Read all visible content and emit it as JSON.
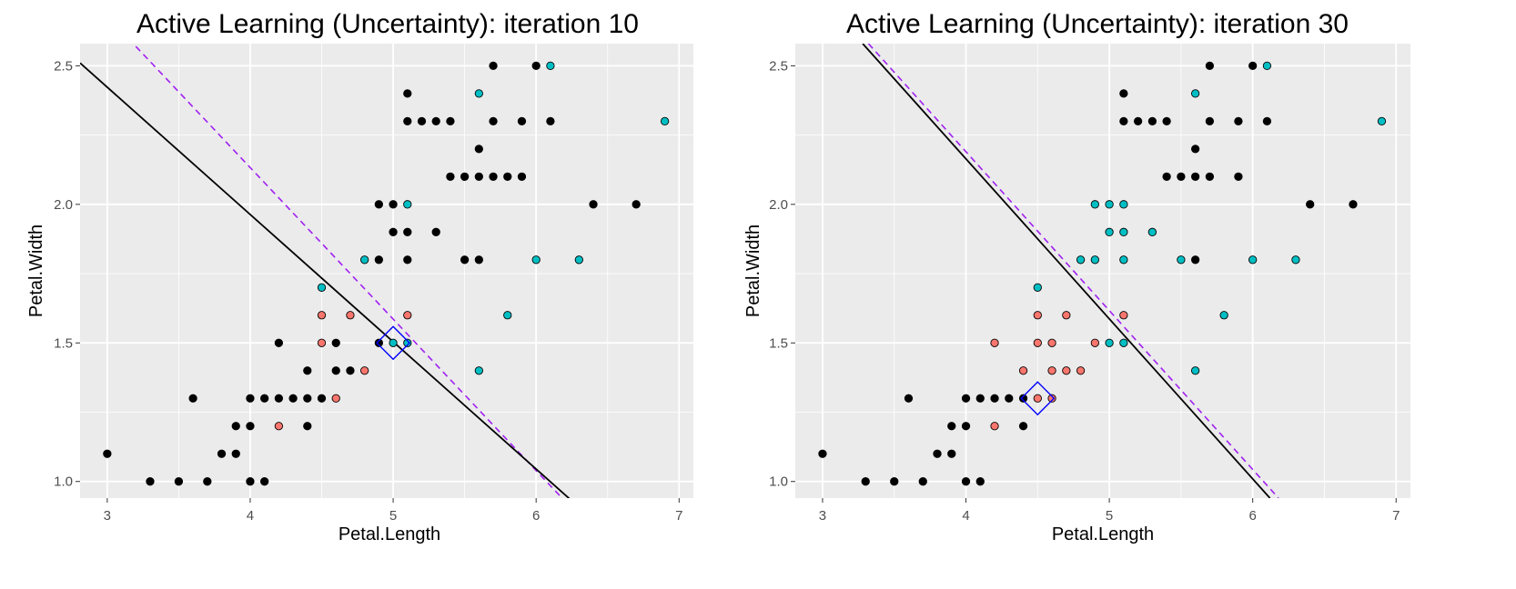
{
  "chart_data": [
    {
      "type": "scatter",
      "title": "Active Learning (Uncertainty): iteration 10",
      "xlabel": "Petal.Length",
      "ylabel": "Petal.Width",
      "xlim": [
        2.81,
        7.1
      ],
      "ylim": [
        0.94,
        2.58
      ],
      "xticks": [
        "3",
        "4",
        "5",
        "6",
        "7"
      ],
      "yticks": [
        "1.0",
        "1.5",
        "2.0",
        "2.5"
      ],
      "grid": true,
      "legend": "none",
      "colors": {
        "unlabeled": "#000000",
        "labeled_versicolor": "#F8766D",
        "labeled_virginica": "#00BFC4",
        "query": "#0000FF",
        "fitted_boundary": "#000000",
        "true_boundary": "#A020F0",
        "panel_bg": "#EBEBEB"
      },
      "series": [
        {
          "points": [
            [
              3.0,
              1.1
            ],
            [
              3.3,
              1.0
            ],
            [
              3.5,
              1.0
            ],
            [
              3.6,
              1.3
            ],
            [
              3.7,
              1.0
            ],
            [
              3.8,
              1.1
            ],
            [
              3.9,
              1.1
            ],
            [
              3.9,
              1.2
            ],
            [
              4.0,
              1.0
            ],
            [
              4.0,
              1.2
            ],
            [
              4.0,
              1.3
            ],
            [
              4.1,
              1.0
            ],
            [
              4.1,
              1.3
            ],
            [
              4.2,
              1.3
            ],
            [
              4.2,
              1.5
            ],
            [
              4.3,
              1.3
            ],
            [
              4.4,
              1.2
            ],
            [
              4.4,
              1.3
            ],
            [
              4.4,
              1.4
            ],
            [
              4.5,
              1.3
            ],
            [
              4.6,
              1.4
            ],
            [
              4.6,
              1.5
            ],
            [
              4.7,
              1.4
            ],
            [
              4.9,
              1.5
            ],
            [
              4.9,
              1.8
            ],
            [
              4.9,
              2.0
            ],
            [
              5.0,
              2.0
            ],
            [
              5.0,
              1.9
            ],
            [
              5.1,
              1.9
            ],
            [
              5.1,
              1.8
            ],
            [
              5.1,
              2.3
            ],
            [
              5.1,
              2.4
            ],
            [
              5.2,
              2.3
            ],
            [
              5.3,
              2.3
            ],
            [
              5.3,
              1.9
            ],
            [
              5.4,
              2.3
            ],
            [
              5.4,
              2.1
            ],
            [
              5.5,
              2.1
            ],
            [
              5.5,
              1.8
            ],
            [
              5.6,
              2.1
            ],
            [
              5.6,
              2.2
            ],
            [
              5.6,
              1.8
            ],
            [
              5.7,
              2.5
            ],
            [
              5.7,
              2.3
            ],
            [
              5.7,
              2.1
            ],
            [
              5.8,
              2.1
            ],
            [
              5.9,
              2.3
            ],
            [
              5.9,
              2.1
            ],
            [
              6.0,
              2.5
            ],
            [
              6.1,
              2.3
            ],
            [
              6.4,
              2.0
            ],
            [
              6.7,
              2.0
            ]
          ]
        },
        {
          "points": [
            [
              4.2,
              1.2
            ],
            [
              4.5,
              1.5
            ],
            [
              4.5,
              1.6
            ],
            [
              4.6,
              1.3
            ],
            [
              4.7,
              1.6
            ],
            [
              4.8,
              1.4
            ],
            [
              5.1,
              1.6
            ]
          ]
        },
        {
          "points": [
            [
              4.5,
              1.7
            ],
            [
              4.8,
              1.8
            ],
            [
              5.0,
              1.5
            ],
            [
              5.1,
              1.5
            ],
            [
              5.1,
              2.0
            ],
            [
              5.6,
              1.4
            ],
            [
              5.6,
              2.4
            ],
            [
              5.8,
              1.6
            ],
            [
              6.0,
              1.8
            ],
            [
              6.1,
              2.5
            ],
            [
              6.3,
              1.8
            ],
            [
              6.9,
              2.3
            ]
          ]
        }
      ],
      "query_point": [
        5.0,
        1.5
      ],
      "fitted_boundary": [
        [
          2.81,
          2.51
        ],
        [
          6.25,
          0.93
        ]
      ],
      "true_boundary": [
        [
          3.2,
          2.57
        ],
        [
          6.2,
          0.93
        ]
      ]
    },
    {
      "type": "scatter",
      "title": "Active Learning (Uncertainty): iteration 30",
      "xlabel": "Petal.Length",
      "ylabel": "Petal.Width",
      "xlim": [
        2.81,
        7.1
      ],
      "ylim": [
        0.94,
        2.58
      ],
      "xticks": [
        "3",
        "4",
        "5",
        "6",
        "7"
      ],
      "yticks": [
        "1.0",
        "1.5",
        "2.0",
        "2.5"
      ],
      "grid": true,
      "legend": "none",
      "colors": {
        "unlabeled": "#000000",
        "labeled_versicolor": "#F8766D",
        "labeled_virginica": "#00BFC4",
        "query": "#0000FF",
        "fitted_boundary": "#000000",
        "true_boundary": "#A020F0",
        "panel_bg": "#EBEBEB"
      },
      "series": [
        {
          "points": [
            [
              3.0,
              1.1
            ],
            [
              3.3,
              1.0
            ],
            [
              3.5,
              1.0
            ],
            [
              3.6,
              1.3
            ],
            [
              3.7,
              1.0
            ],
            [
              3.8,
              1.1
            ],
            [
              3.9,
              1.1
            ],
            [
              3.9,
              1.2
            ],
            [
              4.0,
              1.0
            ],
            [
              4.0,
              1.2
            ],
            [
              4.0,
              1.3
            ],
            [
              4.1,
              1.0
            ],
            [
              4.1,
              1.3
            ],
            [
              4.2,
              1.3
            ],
            [
              4.3,
              1.3
            ],
            [
              4.4,
              1.2
            ],
            [
              4.4,
              1.3
            ],
            [
              5.1,
              2.3
            ],
            [
              5.1,
              2.4
            ],
            [
              5.2,
              2.3
            ],
            [
              5.3,
              2.3
            ],
            [
              5.4,
              2.3
            ],
            [
              5.4,
              2.1
            ],
            [
              5.5,
              2.1
            ],
            [
              5.6,
              2.1
            ],
            [
              5.6,
              2.2
            ],
            [
              5.6,
              1.8
            ],
            [
              5.7,
              2.5
            ],
            [
              5.7,
              2.3
            ],
            [
              5.7,
              2.1
            ],
            [
              5.9,
              2.3
            ],
            [
              5.9,
              2.1
            ],
            [
              6.0,
              2.5
            ],
            [
              6.1,
              2.3
            ],
            [
              6.4,
              2.0
            ],
            [
              6.7,
              2.0
            ]
          ]
        },
        {
          "points": [
            [
              4.2,
              1.2
            ],
            [
              4.2,
              1.5
            ],
            [
              4.4,
              1.4
            ],
            [
              4.5,
              1.3
            ],
            [
              4.5,
              1.5
            ],
            [
              4.5,
              1.6
            ],
            [
              4.6,
              1.3
            ],
            [
              4.6,
              1.4
            ],
            [
              4.6,
              1.5
            ],
            [
              4.7,
              1.4
            ],
            [
              4.7,
              1.6
            ],
            [
              4.8,
              1.4
            ],
            [
              4.9,
              1.5
            ],
            [
              5.1,
              1.6
            ]
          ]
        },
        {
          "points": [
            [
              4.5,
              1.7
            ],
            [
              4.8,
              1.8
            ],
            [
              4.9,
              1.8
            ],
            [
              4.9,
              2.0
            ],
            [
              5.0,
              1.5
            ],
            [
              5.0,
              1.9
            ],
            [
              5.0,
              2.0
            ],
            [
              5.1,
              1.5
            ],
            [
              5.1,
              1.8
            ],
            [
              5.1,
              1.9
            ],
            [
              5.1,
              2.0
            ],
            [
              5.3,
              1.9
            ],
            [
              5.5,
              1.8
            ],
            [
              5.6,
              1.4
            ],
            [
              5.6,
              2.4
            ],
            [
              5.8,
              1.6
            ],
            [
              6.0,
              1.8
            ],
            [
              6.1,
              2.5
            ],
            [
              6.3,
              1.8
            ],
            [
              6.9,
              2.3
            ]
          ]
        }
      ],
      "query_point": [
        4.5,
        1.3
      ],
      "fitted_boundary": [
        [
          3.28,
          2.58
        ],
        [
          6.12,
          0.94
        ]
      ],
      "true_boundary": [
        [
          3.32,
          2.58
        ],
        [
          6.18,
          0.94
        ]
      ]
    }
  ]
}
